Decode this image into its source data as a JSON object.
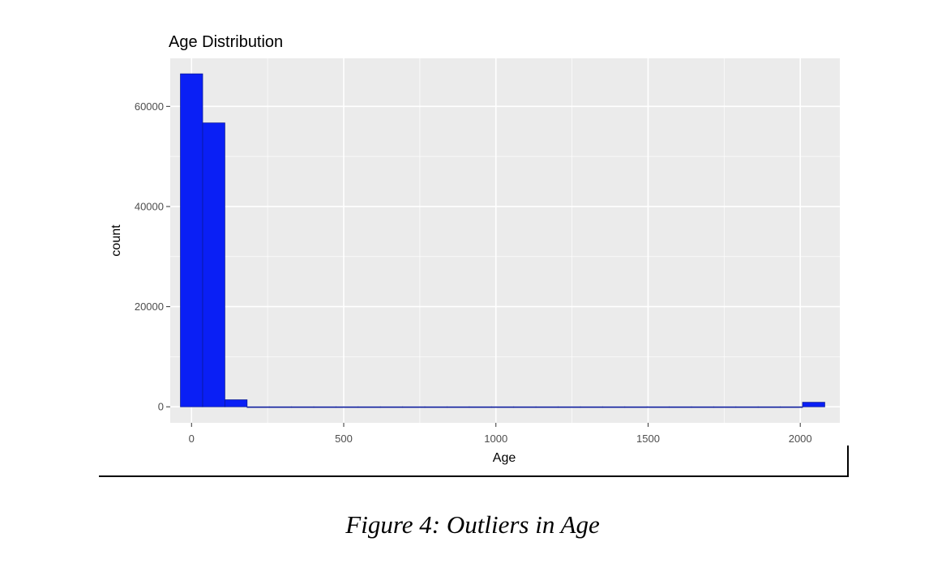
{
  "chart_data": {
    "type": "bar",
    "title": "Age Distribution",
    "xlabel": "Age",
    "ylabel": "count",
    "xlim": [
      -70,
      2130
    ],
    "ylim": [
      -3200,
      69600
    ],
    "x_ticks": [
      0,
      500,
      1000,
      1500,
      2000
    ],
    "y_ticks": [
      0,
      20000,
      40000,
      60000
    ],
    "bin_width": 73,
    "bins": [
      {
        "x": 0,
        "count": 66500
      },
      {
        "x": 73,
        "count": 56700
      },
      {
        "x": 146,
        "count": 1400
      },
      {
        "x": 219,
        "count": 0
      },
      {
        "x": 292,
        "count": 0
      },
      {
        "x": 365,
        "count": 0
      },
      {
        "x": 438,
        "count": 0
      },
      {
        "x": 511,
        "count": 0
      },
      {
        "x": 584,
        "count": 0
      },
      {
        "x": 657,
        "count": 0
      },
      {
        "x": 730,
        "count": 0
      },
      {
        "x": 803,
        "count": 0
      },
      {
        "x": 876,
        "count": 0
      },
      {
        "x": 949,
        "count": 0
      },
      {
        "x": 1022,
        "count": 0
      },
      {
        "x": 1095,
        "count": 0
      },
      {
        "x": 1168,
        "count": 0
      },
      {
        "x": 1241,
        "count": 0
      },
      {
        "x": 1314,
        "count": 0
      },
      {
        "x": 1387,
        "count": 0
      },
      {
        "x": 1460,
        "count": 0
      },
      {
        "x": 1533,
        "count": 0
      },
      {
        "x": 1606,
        "count": 0
      },
      {
        "x": 1679,
        "count": 0
      },
      {
        "x": 1752,
        "count": 0
      },
      {
        "x": 1825,
        "count": 0
      },
      {
        "x": 1898,
        "count": 0
      },
      {
        "x": 1971,
        "count": 0
      },
      {
        "x": 2044,
        "count": 900
      }
    ],
    "grid": true,
    "legend": "none",
    "colors": {
      "fill": "#0a1ff5",
      "outline": "#0a1a9a",
      "panel": "#ebebeb",
      "gridline": "#ffffff"
    }
  },
  "caption": "Figure 4: Outliers in Age"
}
